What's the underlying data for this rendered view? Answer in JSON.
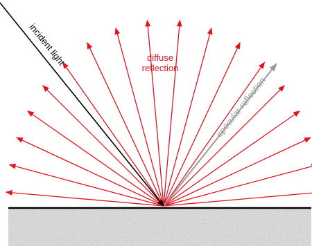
{
  "labels": {
    "incident": "incident light",
    "diffuse_line1": "diffuse",
    "diffuse_line2": "reflection",
    "specular": "specular reflection"
  },
  "colors": {
    "incident": "#000000",
    "diffuse": "#e0141e",
    "specular": "#9a9a9a",
    "surface_line": "#000000",
    "surface_fill": "#b9b9b9"
  },
  "diffuse_ray_angles_deg": [
    5,
    15,
    25,
    35,
    45,
    55,
    65,
    75,
    85,
    95,
    105,
    115,
    125,
    135,
    145,
    155,
    165,
    175
  ]
}
